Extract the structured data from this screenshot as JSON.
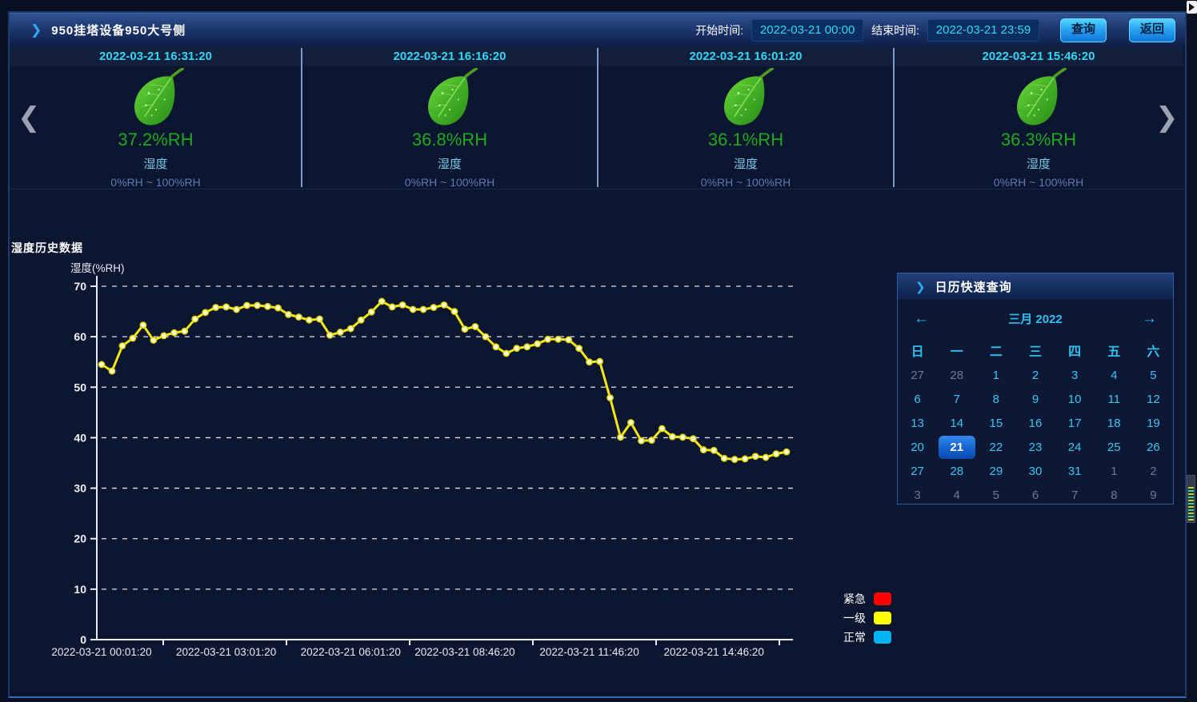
{
  "header": {
    "title": "950挂塔设备950大号侧",
    "start_label": "开始时间:",
    "start_value": "2022-03-21 00:00",
    "end_label": "结束时间:",
    "end_value": "2022-03-21 23:59",
    "query_label": "查询",
    "back_label": "返回"
  },
  "cards": [
    {
      "time": "2022-03-21 16:31:20",
      "value": "37.2%RH",
      "label": "湿度",
      "range": "0%RH ~ 100%RH"
    },
    {
      "time": "2022-03-21 16:16:20",
      "value": "36.8%RH",
      "label": "湿度",
      "range": "0%RH ~ 100%RH"
    },
    {
      "time": "2022-03-21 16:01:20",
      "value": "36.1%RH",
      "label": "湿度",
      "range": "0%RH ~ 100%RH"
    },
    {
      "time": "2022-03-21 15:46:20",
      "value": "36.3%RH",
      "label": "湿度",
      "range": "0%RH ~ 100%RH"
    }
  ],
  "section": {
    "title": "湿度历史数据"
  },
  "chart_data": {
    "type": "line",
    "title": "湿度历史数据",
    "ylabel": "湿度(%RH)",
    "ylim": [
      0,
      70
    ],
    "y_ticks": [
      0,
      10,
      20,
      30,
      40,
      50,
      60,
      70
    ],
    "grid": "dashed-horizontal",
    "x_start": "2022-03-21 00:01:20",
    "x_interval_minutes": 15,
    "x_tick_indices": [
      0,
      12,
      24,
      35,
      47,
      59
    ],
    "x_tick_labels": [
      "2022-03-21 00:01:20",
      "2022-03-21 03:01:20",
      "2022-03-21 06:01:20",
      "2022-03-21 08:46:20",
      "2022-03-21 11:46:20",
      "2022-03-21 14:46:20"
    ],
    "line_color": "#f3e714",
    "values": [
      54.5,
      53.2,
      58.2,
      59.7,
      62.3,
      59.3,
      60.2,
      60.8,
      61.1,
      63.5,
      64.8,
      65.8,
      65.9,
      65.4,
      66.2,
      66.2,
      66.0,
      65.7,
      64.4,
      63.9,
      63.3,
      63.5,
      60.3,
      60.9,
      61.6,
      63.3,
      64.9,
      67.0,
      65.9,
      66.3,
      65.4,
      65.4,
      65.8,
      66.3,
      65.0,
      61.5,
      62.0,
      60.0,
      58.0,
      56.7,
      57.7,
      58.0,
      58.6,
      59.5,
      59.5,
      59.4,
      57.7,
      55.0,
      55.1,
      47.9,
      40.1,
      43.0,
      39.4,
      39.5,
      41.8,
      40.2,
      40.1,
      39.8,
      37.6,
      37.5,
      35.9,
      35.7,
      35.8,
      36.3,
      36.1,
      36.8,
      37.2
    ]
  },
  "legend": [
    {
      "label": "紧急",
      "color": "#ff0000"
    },
    {
      "label": "一级",
      "color": "#ffff00"
    },
    {
      "label": "正常",
      "color": "#00b4f0"
    }
  ],
  "calendar": {
    "title": "日历快速查询",
    "month_label": "三月 2022",
    "prev_arrow": "←",
    "next_arrow": "→",
    "weekdays": [
      "日",
      "一",
      "二",
      "三",
      "四",
      "五",
      "六"
    ],
    "selected_day": 21,
    "days": [
      {
        "n": 27,
        "muted": true
      },
      {
        "n": 28,
        "muted": true
      },
      {
        "n": 1
      },
      {
        "n": 2
      },
      {
        "n": 3
      },
      {
        "n": 4
      },
      {
        "n": 5
      },
      {
        "n": 6
      },
      {
        "n": 7
      },
      {
        "n": 8
      },
      {
        "n": 9
      },
      {
        "n": 10
      },
      {
        "n": 11
      },
      {
        "n": 12
      },
      {
        "n": 13
      },
      {
        "n": 14
      },
      {
        "n": 15
      },
      {
        "n": 16
      },
      {
        "n": 17
      },
      {
        "n": 18
      },
      {
        "n": 19
      },
      {
        "n": 20
      },
      {
        "n": 21,
        "selected": true
      },
      {
        "n": 22
      },
      {
        "n": 23
      },
      {
        "n": 24
      },
      {
        "n": 25
      },
      {
        "n": 26
      },
      {
        "n": 27
      },
      {
        "n": 28
      },
      {
        "n": 29
      },
      {
        "n": 30
      },
      {
        "n": 31
      },
      {
        "n": 1,
        "muted": true
      },
      {
        "n": 2,
        "muted": true
      },
      {
        "n": 3,
        "muted": true
      },
      {
        "n": 4,
        "muted": true
      },
      {
        "n": 5,
        "muted": true
      },
      {
        "n": 6,
        "muted": true
      },
      {
        "n": 7,
        "muted": true
      },
      {
        "n": 8,
        "muted": true
      },
      {
        "n": 9,
        "muted": true
      }
    ]
  },
  "carousel": {
    "prev": "❮",
    "next": "❯"
  },
  "icons": {
    "header_chevron": "❯",
    "calendar_chevron": "❯"
  },
  "accent_colors": {
    "cyan_text": "#2fd8f2",
    "green_value": "#1ea81e",
    "calendar_cyan": "#2fc0f2",
    "panel_border": "#2f6abe"
  }
}
